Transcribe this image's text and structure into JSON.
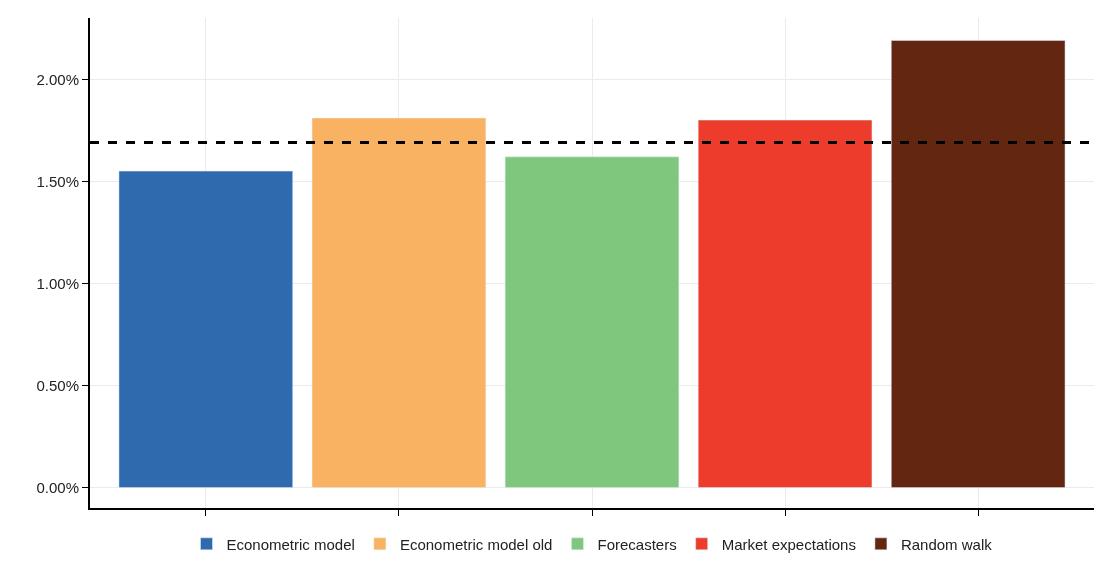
{
  "chart_data": {
    "type": "bar",
    "categories": [
      null,
      null,
      null,
      null,
      null
    ],
    "series": [
      {
        "name": "Econometric model",
        "color": "#2e6aad",
        "values": [
          1.55,
          null,
          null,
          null,
          null
        ]
      },
      {
        "name": "Econometric model old",
        "color": "#f9b262",
        "values": [
          null,
          1.81,
          null,
          null,
          null
        ]
      },
      {
        "name": "Forecasters",
        "color": "#80c77e",
        "values": [
          null,
          null,
          1.62,
          null,
          null
        ]
      },
      {
        "name": "Market expectations",
        "color": "#ed3b2c",
        "values": [
          null,
          null,
          null,
          1.8,
          null
        ]
      },
      {
        "name": "Random walk",
        "color": "#622611",
        "values": [
          null,
          null,
          null,
          null,
          2.19
        ]
      }
    ],
    "ylim": [
      -0.1,
      2.3
    ],
    "yticks": [
      {
        "value": 0,
        "label": "0.00%"
      },
      {
        "value": 0.5,
        "label": "0.50%"
      },
      {
        "value": 1,
        "label": "1.00%"
      },
      {
        "value": 1.5,
        "label": "1.50%"
      },
      {
        "value": 2,
        "label": "2.00%"
      }
    ],
    "ref_lines": [
      {
        "axis": "y",
        "value": 1.69,
        "color": "#000000",
        "line_style": "dashed"
      }
    ],
    "grid": true,
    "legend": "bottom"
  }
}
